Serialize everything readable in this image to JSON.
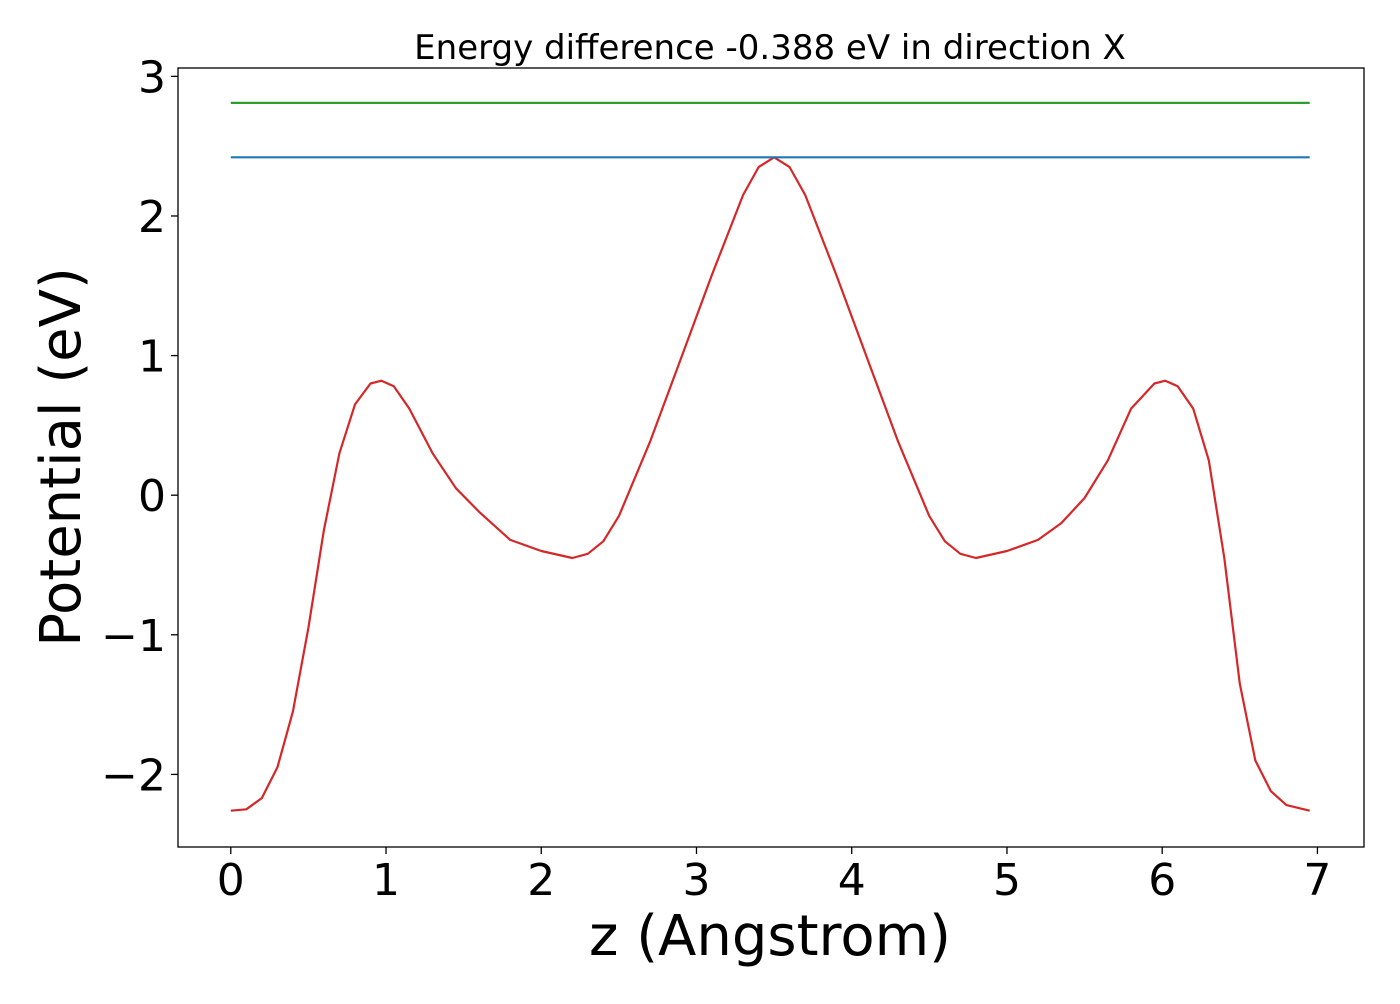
{
  "chart_data": {
    "type": "line",
    "title": "Energy difference -0.388 eV in direction X",
    "xlabel": "z (Angstrom)",
    "ylabel": "Potential (eV)",
    "xlim": [
      -0.34,
      7.3
    ],
    "ylim": [
      -2.52,
      3.06
    ],
    "xticks": [
      0,
      1,
      2,
      3,
      4,
      5,
      6,
      7
    ],
    "xtick_labels": [
      "0",
      "1",
      "2",
      "3",
      "4",
      "5",
      "6",
      "7"
    ],
    "yticks": [
      -2,
      -1,
      0,
      1,
      2,
      3
    ],
    "ytick_labels": [
      "−2",
      "−1",
      "0",
      "1",
      "2",
      "3"
    ],
    "grid": false,
    "series": [
      {
        "color": "#d62728",
        "x": [
          0,
          0.1,
          0.2,
          0.3,
          0.4,
          0.5,
          0.6,
          0.7,
          0.8,
          0.9,
          0.97,
          1.05,
          1.15,
          1.3,
          1.45,
          1.6,
          1.8,
          2.0,
          2.2,
          2.3,
          2.4,
          2.5,
          2.7,
          2.9,
          3.1,
          3.3,
          3.4,
          3.5,
          3.6,
          3.7,
          3.9,
          4.1,
          4.3,
          4.5,
          4.6,
          4.7,
          4.8,
          5.0,
          5.2,
          5.35,
          5.5,
          5.65,
          5.8,
          5.95,
          6.02,
          6.1,
          6.2,
          6.3,
          6.4,
          6.5,
          6.6,
          6.7,
          6.8,
          6.95
        ],
        "y": [
          -2.26,
          -2.25,
          -2.17,
          -1.95,
          -1.55,
          -0.95,
          -0.25,
          0.3,
          0.65,
          0.8,
          0.82,
          0.78,
          0.62,
          0.3,
          0.05,
          -0.12,
          -0.32,
          -0.4,
          -0.45,
          -0.42,
          -0.33,
          -0.15,
          0.38,
          0.98,
          1.58,
          2.15,
          2.35,
          2.42,
          2.35,
          2.15,
          1.58,
          0.98,
          0.38,
          -0.15,
          -0.33,
          -0.42,
          -0.45,
          -0.4,
          -0.32,
          -0.2,
          -0.02,
          0.25,
          0.62,
          0.8,
          0.82,
          0.78,
          0.62,
          0.25,
          -0.45,
          -1.35,
          -1.9,
          -2.12,
          -2.22,
          -2.26
        ]
      },
      {
        "color": "#1f77b4",
        "x": [
          0,
          6.95
        ],
        "y": [
          2.42,
          2.42
        ]
      },
      {
        "color": "#2ca02c",
        "x": [
          0,
          6.95
        ],
        "y": [
          2.81,
          2.81
        ]
      }
    ]
  }
}
